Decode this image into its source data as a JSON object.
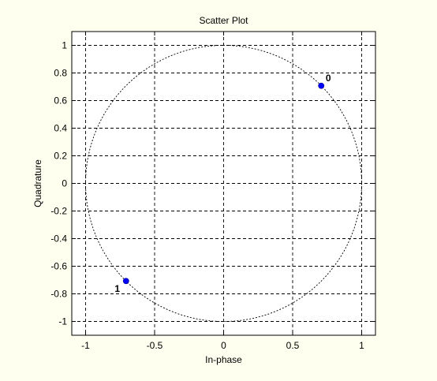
{
  "chart_data": {
    "type": "scatter",
    "title": "Scatter Plot",
    "xlabel": "In-phase",
    "ylabel": "Quadrature",
    "xlim": [
      -1.1,
      1.1
    ],
    "ylim": [
      -1.1,
      1.1
    ],
    "xticks": [
      -1,
      -0.5,
      0,
      0.5,
      1
    ],
    "xtick_labels": [
      "-1",
      "-0.5",
      "0",
      "0.5",
      "1"
    ],
    "yticks": [
      1,
      0.8,
      0.6,
      0.4,
      0.2,
      0,
      -0.2,
      -0.4,
      -0.6,
      -0.8,
      -1
    ],
    "ytick_labels": [
      "1",
      "0.8",
      "0.6",
      "0.4",
      "0.2",
      "0",
      "-0.2",
      "-0.4",
      "-0.6",
      "-0.8",
      "-1"
    ],
    "grid": true,
    "reference_circle": {
      "center": [
        0,
        0
      ],
      "radius": 1,
      "style": "dashed"
    },
    "points": [
      {
        "x": 0.707,
        "y": 0.707,
        "label": "0"
      },
      {
        "x": -0.707,
        "y": -0.707,
        "label": "1"
      }
    ],
    "colors": {
      "background": "#FFFFF0",
      "plot_area": "#FFFFFF",
      "marker": "#0000FF",
      "grid": "#000000"
    }
  }
}
